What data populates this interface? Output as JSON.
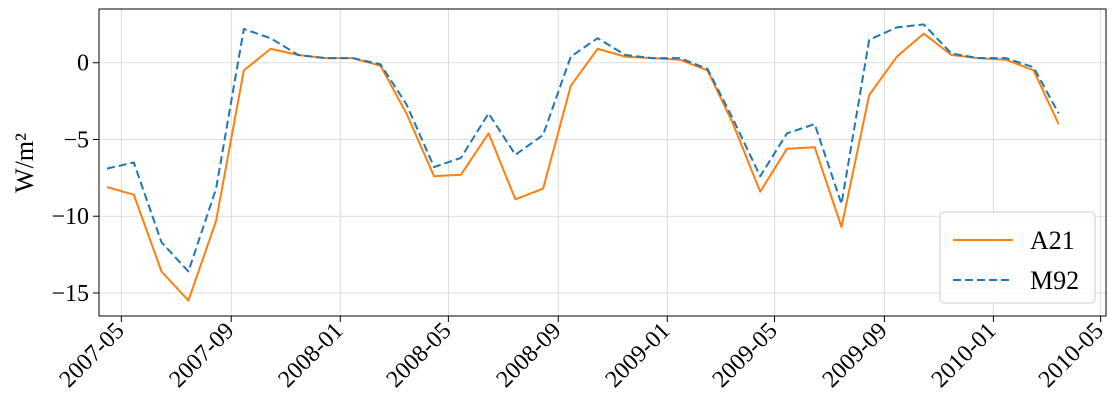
{
  "chart_data": {
    "type": "line",
    "title": "",
    "xlabel": "",
    "ylabel": "W/m²",
    "ylim": [
      -16.5,
      3.5
    ],
    "xlim": [
      "2007-04-06",
      "2010-05-07"
    ],
    "grid": true,
    "legend_position": "lower-right",
    "x_ticks": [
      "2007-05",
      "2007-09",
      "2008-01",
      "2008-05",
      "2008-09",
      "2009-01",
      "2009-05",
      "2009-09",
      "2010-01",
      "2010-05"
    ],
    "y_ticks": [
      0,
      -5,
      -10,
      -15
    ],
    "y_tick_labels": [
      "0",
      "−5",
      "−10",
      "−15"
    ],
    "x": [
      "2007-04-15",
      "2007-05-15",
      "2007-06-15",
      "2007-07-15",
      "2007-08-15",
      "2007-09-15",
      "2007-10-15",
      "2007-11-15",
      "2007-12-15",
      "2008-01-15",
      "2008-02-15",
      "2008-03-15",
      "2008-04-15",
      "2008-05-15",
      "2008-06-15",
      "2008-07-15",
      "2008-08-15",
      "2008-09-15",
      "2008-10-15",
      "2008-11-15",
      "2008-12-15",
      "2009-01-15",
      "2009-02-15",
      "2009-03-15",
      "2009-04-15",
      "2009-05-15",
      "2009-06-15",
      "2009-07-15",
      "2009-08-15",
      "2009-09-15",
      "2009-10-15",
      "2009-11-15",
      "2009-12-15",
      "2010-01-15",
      "2010-02-15",
      "2010-03-15"
    ],
    "series": [
      {
        "name": "A21",
        "color": "#ff7f0e",
        "style": "solid",
        "values": [
          -8.1,
          -8.6,
          -13.6,
          -15.5,
          -10.3,
          -0.5,
          0.9,
          0.5,
          0.3,
          0.3,
          -0.2,
          -3.3,
          -7.4,
          -7.3,
          -4.6,
          -8.9,
          -8.2,
          -1.5,
          0.9,
          0.4,
          0.3,
          0.2,
          -0.5,
          -3.9,
          -8.4,
          -5.6,
          -5.5,
          -10.7,
          -2.1,
          0.4,
          1.9,
          0.5,
          0.3,
          0.2,
          -0.5,
          -4.0
        ]
      },
      {
        "name": "M92",
        "color": "#1f77b4",
        "style": "dashed",
        "values": [
          -6.9,
          -6.5,
          -11.7,
          -13.6,
          -8.2,
          2.2,
          1.6,
          0.5,
          0.3,
          0.3,
          -0.1,
          -2.7,
          -6.8,
          -6.2,
          -3.3,
          -6.0,
          -4.7,
          0.4,
          1.6,
          0.5,
          0.3,
          0.3,
          -0.4,
          -3.6,
          -7.4,
          -4.6,
          -4.0,
          -9.2,
          1.5,
          2.3,
          2.5,
          0.6,
          0.3,
          0.3,
          -0.3,
          -3.3
        ]
      }
    ]
  }
}
